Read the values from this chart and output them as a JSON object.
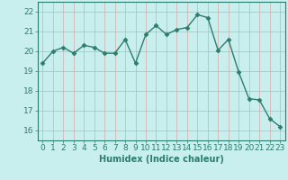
{
  "x": [
    0,
    1,
    2,
    3,
    4,
    5,
    6,
    7,
    8,
    9,
    10,
    11,
    12,
    13,
    14,
    15,
    16,
    17,
    18,
    19,
    20,
    21,
    22,
    23
  ],
  "y": [
    19.4,
    20.0,
    20.2,
    19.9,
    20.3,
    20.2,
    19.9,
    19.9,
    20.6,
    19.4,
    20.85,
    21.3,
    20.85,
    21.1,
    21.2,
    21.85,
    21.7,
    20.05,
    20.6,
    18.95,
    17.6,
    17.55,
    16.6,
    16.2
  ],
  "line_color": "#2d7d6e",
  "marker": "D",
  "marker_size": 2.5,
  "bg_color": "#c8eeee",
  "grid_major_color": "#d8aaaa",
  "grid_minor_color": "#ffffff",
  "xlabel": "Humidex (Indice chaleur)",
  "ylim": [
    15.5,
    22.5
  ],
  "xlim": [
    -0.5,
    23.5
  ],
  "yticks": [
    16,
    17,
    18,
    19,
    20,
    21,
    22
  ],
  "xticks": [
    0,
    1,
    2,
    3,
    4,
    5,
    6,
    7,
    8,
    9,
    10,
    11,
    12,
    13,
    14,
    15,
    16,
    17,
    18,
    19,
    20,
    21,
    22,
    23
  ],
  "tick_color": "#2d7d6e",
  "label_fontsize": 7,
  "tick_fontsize": 6.5,
  "linewidth": 1.0
}
